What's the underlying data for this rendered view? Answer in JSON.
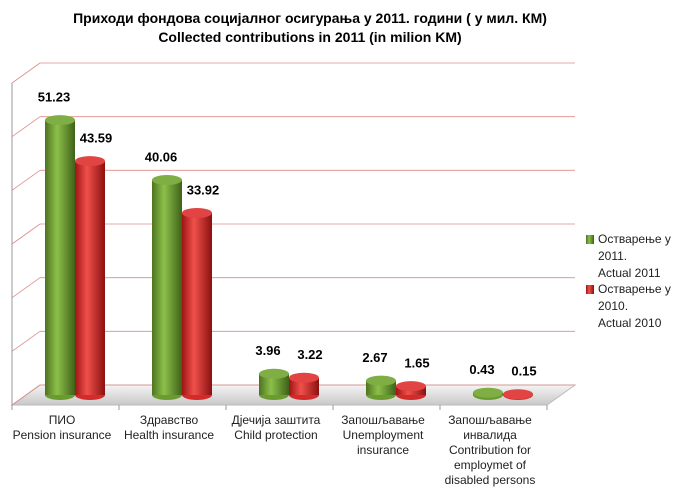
{
  "chart_data": {
    "type": "bar",
    "title": "Приходи фондова социјалног осигурања у 2011.  години ( у мил. КМ)",
    "subtitle": "Collected contributions in 2011 (in milion KM)",
    "categories": [
      "ПИО\nPension insurance",
      "Здравство\nHealth insurance",
      "Дјечија заштита\nChild protection",
      "Запошљавање\nUnemployment\ninsurance",
      "Запошљавање\nинвалида\nContribution for\nemploymet of\ndisabled persons"
    ],
    "series": [
      {
        "name": "Остварење у 2011.\nActual 2011",
        "color": "#6b9a2f",
        "values": [
          51.23,
          40.06,
          3.96,
          2.67,
          0.43
        ]
      },
      {
        "name": "Остварење у 2010.\nActual 2010",
        "color": "#d42a2a",
        "values": [
          43.59,
          33.92,
          3.22,
          1.65,
          0.15
        ]
      }
    ],
    "ylim": [
      0,
      60
    ],
    "yticks": [
      0,
      10,
      20,
      30,
      40,
      50,
      60
    ],
    "grid": true,
    "legend": "right"
  }
}
